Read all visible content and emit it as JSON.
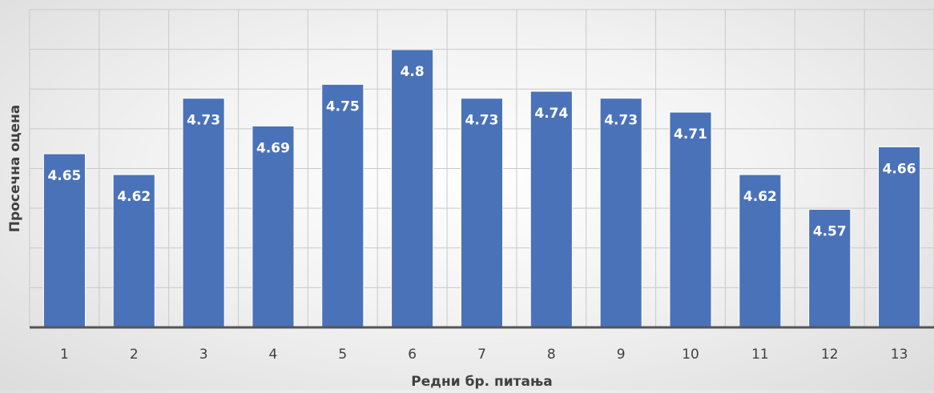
{
  "chart_data": {
    "type": "bar",
    "title": "",
    "xlabel": "Редни бр. питања",
    "ylabel": "Просечна оцена",
    "categories": [
      "1",
      "2",
      "3",
      "4",
      "5",
      "6",
      "7",
      "8",
      "9",
      "10",
      "11",
      "12",
      "13"
    ],
    "values": [
      4.65,
      4.62,
      4.73,
      4.69,
      4.75,
      4.8,
      4.73,
      4.74,
      4.73,
      4.71,
      4.62,
      4.57,
      4.66
    ],
    "ylim": [
      4.4,
      4.8
    ],
    "grid": true,
    "legend": "none",
    "colors": {
      "bar": "#4a72b8",
      "bar_edge": "#ffffff",
      "label": "#ffffff",
      "grid": "#c9c9c9",
      "axis": "#555555",
      "text": "#404040"
    }
  }
}
